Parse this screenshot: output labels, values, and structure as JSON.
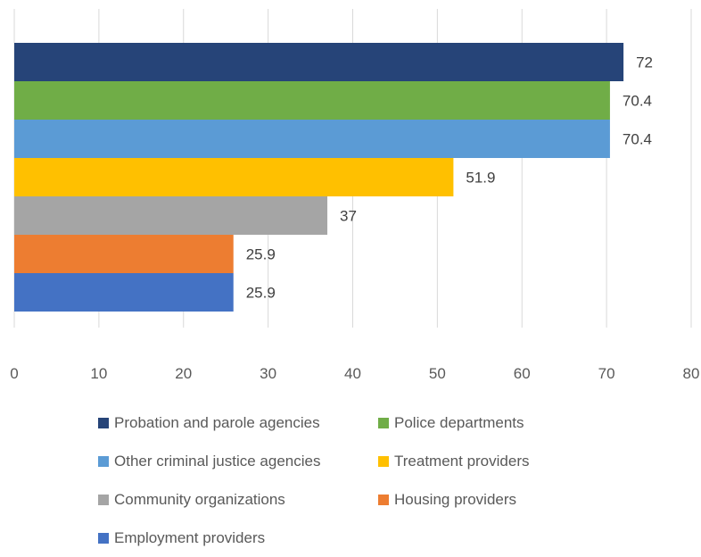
{
  "chart_data": {
    "type": "bar",
    "orientation": "horizontal",
    "title": "",
    "xlabel": "",
    "ylabel": "",
    "xlim": [
      0,
      80
    ],
    "x_ticks": [
      "0",
      "10",
      "20",
      "30",
      "40",
      "50",
      "60",
      "70",
      "80"
    ],
    "grid": "vertical",
    "legend_position": "bottom",
    "series": [
      {
        "name": "Probation and parole agencies",
        "value": 72,
        "label": "72",
        "color": "#264478"
      },
      {
        "name": "Police departments",
        "value": 70.4,
        "label": "70.4",
        "color": "#70AD47"
      },
      {
        "name": "Other criminal justice agencies",
        "value": 70.4,
        "label": "70.4",
        "color": "#5B9BD5"
      },
      {
        "name": "Treatment providers",
        "value": 51.9,
        "label": "51.9",
        "color": "#FFC000"
      },
      {
        "name": "Community organizations",
        "value": 37,
        "label": "37",
        "color": "#A5A5A5"
      },
      {
        "name": "Housing providers",
        "value": 25.9,
        "label": "25.9",
        "color": "#ED7D31"
      },
      {
        "name": "Employment providers",
        "value": 25.9,
        "label": "25.9",
        "color": "#4472C4"
      }
    ]
  }
}
